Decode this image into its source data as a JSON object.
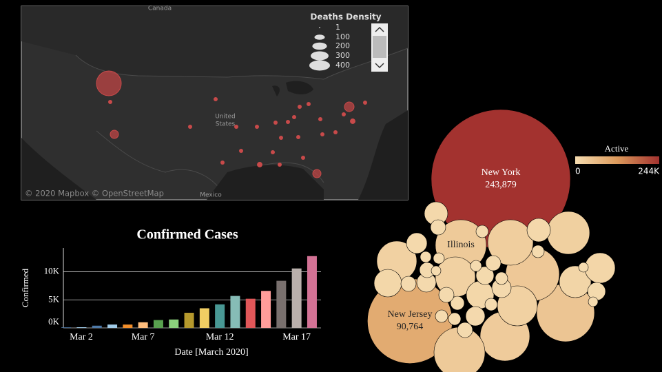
{
  "map": {
    "labels": [
      "Canada",
      "United",
      "States",
      "Mexico"
    ],
    "attribution": "© 2020 Mapbox © OpenStreetMap",
    "legend": {
      "title": "Deaths Density",
      "sizes": [
        1,
        100,
        200,
        300,
        400
      ]
    },
    "points": [
      576,
      64,
      87,
      16,
      16,
      16,
      16,
      16,
      16,
      16,
      16,
      16,
      16,
      16,
      28,
      16,
      16,
      16,
      16,
      16,
      16,
      16,
      28,
      16,
      16,
      64,
      16,
      16
    ]
  },
  "chart_data": [
    {
      "type": "bar",
      "title": "Confirmed Cases",
      "x_label": "Date [March 2020]",
      "y_label": "Confirmed",
      "categories": [
        "Mar 2",
        null,
        null,
        null,
        null,
        "Mar 7",
        null,
        null,
        null,
        null,
        "Mar 12",
        null,
        null,
        null,
        null,
        "Mar 17",
        null
      ],
      "values": [
        100,
        120,
        400,
        600,
        600,
        1000,
        1400,
        1500,
        2700,
        3500,
        4200,
        5700,
        5200,
        6600,
        8400,
        10600,
        12800
      ],
      "colors": [
        "#4e79a7",
        "#a0cbe8",
        "#4e79a7",
        "#a0cbe8",
        "#f28e2b",
        "#ffbe7d",
        "#59a14f",
        "#8cd17d",
        "#b6992d",
        "#f1ce63",
        "#499894",
        "#86bcb6",
        "#e15759",
        "#ff9d9a",
        "#79706e",
        "#bab0ac",
        "#d37295"
      ],
      "ylim": [
        0,
        14000
      ],
      "yticks": [
        {
          "value": 0,
          "label": "0K"
        },
        {
          "value": 5000,
          "label": "5K"
        },
        {
          "value": 10000,
          "label": "10K"
        }
      ],
      "grid": true
    },
    {
      "type": "bubble",
      "legend_title": "Active",
      "clim": [
        0,
        243879
      ],
      "colorticks": [
        0,
        {
          "value": 243879,
          "label": "244K"
        }
      ],
      "colors": [
        "#f5dcb0",
        "#dc9a5c",
        "#a3322f"
      ],
      "categories": [
        "New York",
        "New Jersey",
        "Illinois",
        null,
        null,
        null,
        null,
        null,
        null,
        null,
        null,
        null,
        null,
        null,
        null,
        null,
        null,
        null,
        null,
        null,
        null,
        null,
        null,
        null,
        null,
        null,
        null,
        null,
        null,
        null,
        null,
        null,
        null,
        null,
        null,
        null,
        null,
        null,
        null,
        null,
        null,
        null,
        null
      ],
      "values": [
        243879,
        90764,
        32729,
        42170,
        36362,
        30985,
        32729,
        20106,
        22975,
        26035,
        20106,
        9563,
        20106,
        5379,
        6909,
        2893,
        6909,
        12647,
        11571,
        4040,
        9563,
        4040,
        4686,
        4686,
        2391,
        2893,
        4686,
        2893,
        2893,
        1530,
        1530,
        1936,
        1936,
        2893,
        1530,
        1936,
        1171,
        1171,
        1171,
        1936,
        2893,
        1936,
        1936
      ],
      "value_labels": [
        "243,879",
        "90,764",
        null,
        null,
        null,
        null,
        null,
        null,
        null,
        null,
        null,
        null,
        null,
        null,
        null,
        null,
        null,
        null,
        null,
        null,
        null,
        null,
        null,
        null,
        null,
        null,
        null,
        null,
        null,
        null,
        null,
        null,
        null,
        null,
        null,
        null,
        null,
        null,
        null,
        null,
        null,
        null,
        null
      ]
    }
  ]
}
